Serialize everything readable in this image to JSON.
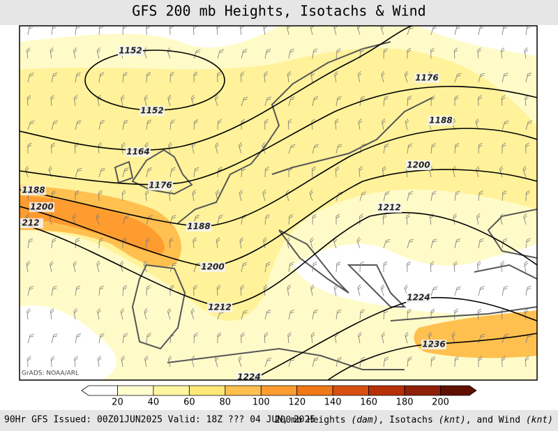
{
  "title": "GFS 200 mb Heights, Isotachs & Wind",
  "contour_labels": [
    1152,
    1152,
    1164,
    1176,
    1176,
    1188,
    1188,
    1188,
    1200,
    1200,
    1200,
    "212",
    1212,
    1212,
    1224,
    1224,
    1236
  ],
  "credit": "GrADS: NOAA/ARL",
  "colorbar": {
    "ticks": [
      20,
      40,
      60,
      80,
      100,
      120,
      140,
      160,
      180,
      200
    ],
    "colors": [
      "#ffffff",
      "#ffffd0",
      "#fff5a0",
      "#ffe878",
      "#ffc050",
      "#ff9c30",
      "#f07818",
      "#d85010",
      "#b83008",
      "#902008",
      "#601000"
    ]
  },
  "footer_left": "90Hr GFS Issued: 00Z01JUN2025 Valid: 18Z ??? 04 JUN, 2025",
  "footer_right": [
    "200mb Heights ",
    "(dam)",
    ", Isotachs ",
    "(knt)",
    ", and Wind ",
    "(knt)"
  ]
}
